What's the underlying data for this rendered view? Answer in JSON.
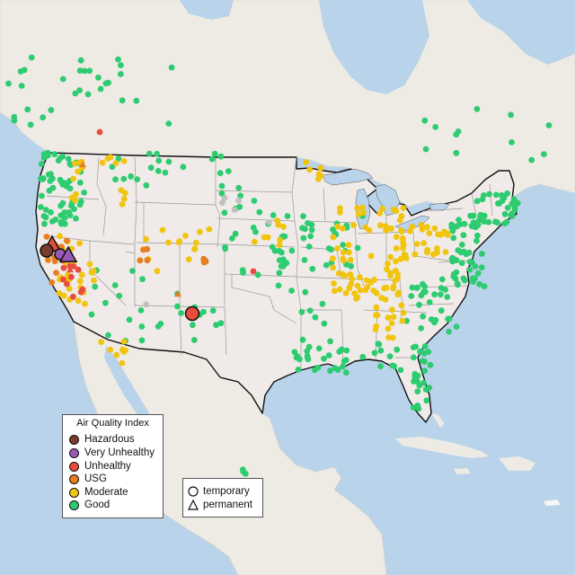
{
  "map": {
    "colors": {
      "water": "#b9d3ea",
      "land": "#f0ebe8",
      "land_other": "#eeeae4",
      "us_border": "#111111",
      "state_border": "#999999"
    },
    "levels": {
      "good": "#2ecc71",
      "moderate": "#f1c40f",
      "usg": "#e67e22",
      "unhealthy": "#e74c3c",
      "very_unhealthy": "#9b59b6",
      "hazardous": "#7b3b2e",
      "no_data": "#c0c0c0"
    }
  },
  "legend": {
    "title": "Air Quality Index",
    "items": [
      {
        "label": "Hazardous",
        "color": "#7b3b2e"
      },
      {
        "label": "Very Unhealthy",
        "color": "#9b59b6"
      },
      {
        "label": "Unhealthy",
        "color": "#e74c3c"
      },
      {
        "label": "USG",
        "color": "#e67e22"
      },
      {
        "label": "Moderate",
        "color": "#f1c40f"
      },
      {
        "label": "Good",
        "color": "#2ecc71"
      }
    ]
  },
  "shape_legend": {
    "items": [
      {
        "label": "temporary",
        "shape": "circle-icon"
      },
      {
        "label": "permanent",
        "shape": "triangle-icon"
      }
    ]
  }
}
